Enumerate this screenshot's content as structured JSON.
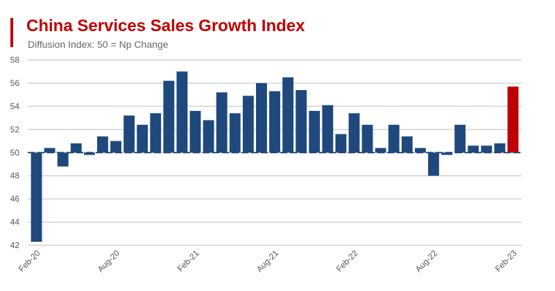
{
  "chart_data": {
    "type": "bar",
    "title": "China Services Sales Growth Index",
    "subtitle": "Diffusion Index: 50 = Np Change",
    "xlabel": "",
    "ylabel": "",
    "baseline": 50,
    "ylim": [
      42,
      58
    ],
    "yticks": [
      42,
      44,
      46,
      48,
      50,
      52,
      54,
      56,
      58
    ],
    "grid": true,
    "categories": [
      "Feb-20",
      "Mar-20",
      "Apr-20",
      "May-20",
      "Jun-20",
      "Jul-20",
      "Aug-20",
      "Sep-20",
      "Oct-20",
      "Nov-20",
      "Dec-20",
      "Jan-21",
      "Feb-21",
      "Mar-21",
      "Apr-21",
      "May-21",
      "Jun-21",
      "Jul-21",
      "Aug-21",
      "Sep-21",
      "Oct-21",
      "Nov-21",
      "Dec-21",
      "Jan-22",
      "Feb-22",
      "Mar-22",
      "Apr-22",
      "May-22",
      "Jun-22",
      "Jul-22",
      "Aug-22",
      "Sep-22",
      "Oct-22",
      "Nov-22",
      "Dec-22",
      "Jan-23",
      "Feb-23"
    ],
    "xtick_labels": [
      "Feb-20",
      "Aug-20",
      "Feb-21",
      "Aug-21",
      "Feb-22",
      "Aug-22",
      "Feb-23"
    ],
    "values": [
      42.3,
      50.4,
      48.8,
      50.8,
      49.8,
      51.4,
      51.0,
      53.2,
      52.4,
      53.4,
      56.2,
      57.0,
      53.6,
      52.8,
      55.2,
      53.4,
      54.9,
      56.0,
      55.3,
      56.5,
      55.4,
      53.6,
      54.1,
      51.6,
      53.4,
      52.4,
      50.4,
      52.4,
      51.4,
      50.4,
      48.0,
      49.8,
      52.4,
      50.6,
      50.6,
      50.8,
      55.7
    ],
    "colors": {
      "bar": "#1f497d",
      "highlight": "#c00000",
      "title": "#c00000",
      "grid": "#d0d0d0"
    },
    "highlight_index": 36
  }
}
